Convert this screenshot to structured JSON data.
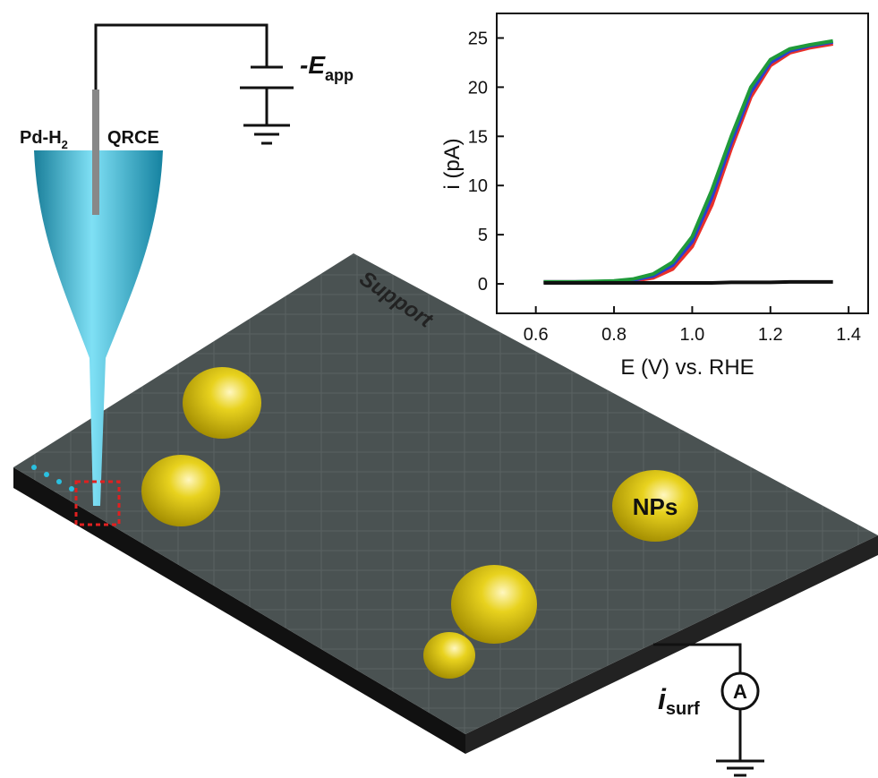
{
  "diagram": {
    "electrode_label": {
      "text": "Pd-H",
      "subscript": "2"
    },
    "probe_label": "QRCE",
    "potential_label": {
      "text": "-E",
      "subscript": "app"
    },
    "support_label": "Support",
    "particles_label": "NPs",
    "current_label": {
      "text": "i",
      "subscript": "surf"
    },
    "ammeter_label": "A"
  },
  "chart_data": {
    "type": "line",
    "x_label": "E (V) vs. RHE",
    "y_label": "i (pA)",
    "xlim": [
      0.5,
      1.45
    ],
    "ylim": [
      -3,
      27.5
    ],
    "xticks": [
      0.6,
      0.8,
      {
        "value": 1,
        "label": "1.0"
      },
      1.2,
      1.4
    ],
    "yticks": [
      0,
      5,
      10,
      15,
      20,
      25
    ],
    "x": [
      0.62,
      0.7,
      0.8,
      0.85,
      0.9,
      0.95,
      1.0,
      1.05,
      1.1,
      1.15,
      1.2,
      1.25,
      1.3,
      1.36
    ],
    "series": [
      {
        "color": "#e8302a",
        "values": [
          0.2,
          0.2,
          0.2,
          0.3,
          0.6,
          1.5,
          3.8,
          8,
          13.8,
          19,
          22.2,
          23.5,
          24,
          24.4
        ]
      },
      {
        "color": "#2a3fd0",
        "values": [
          0.2,
          0.2,
          0.25,
          0.4,
          0.8,
          1.9,
          4.3,
          8.8,
          14.4,
          19.5,
          22.5,
          23.7,
          24.2,
          24.6
        ]
      },
      {
        "color": "#1f9a3a",
        "values": [
          0.2,
          0.2,
          0.3,
          0.5,
          1.0,
          2.2,
          4.8,
          9.5,
          15,
          20,
          22.8,
          23.9,
          24.3,
          24.7
        ]
      },
      {
        "color": "#111111",
        "values": [
          0.1,
          0.1,
          0.1,
          0.1,
          0.1,
          0.1,
          0.1,
          0.1,
          0.15,
          0.15,
          0.15,
          0.2,
          0.2,
          0.2
        ]
      }
    ]
  }
}
